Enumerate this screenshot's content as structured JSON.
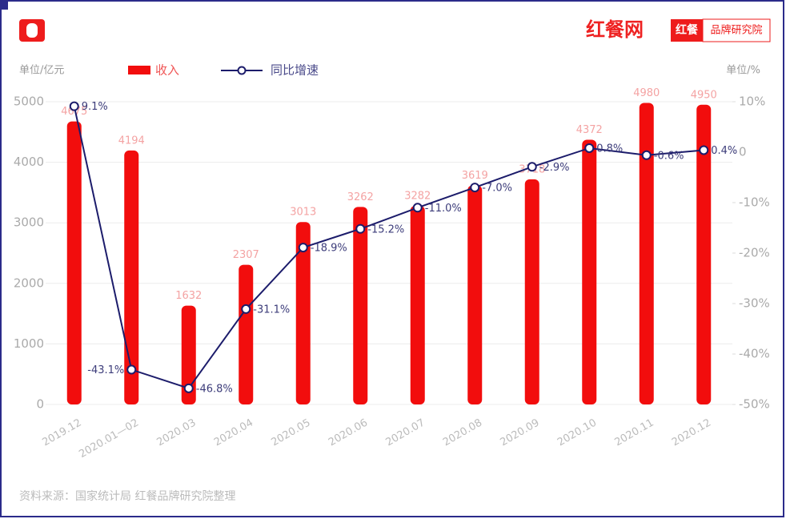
{
  "branding": {
    "logo": "红餐网",
    "badge": "红餐",
    "badge_sub": "品牌研究院"
  },
  "chart_data": {
    "type": "bar",
    "ylabel": "单位/亿元",
    "y2label": "单位/%",
    "source": "资料来源：国家统计局 红餐品牌研究院整理",
    "categories": [
      "2019.12",
      "2020.01—02",
      "2020.03",
      "2020.04",
      "2020.05",
      "2020.06",
      "2020.07",
      "2020.08",
      "2020.09",
      "2020.10",
      "2020.11",
      "2020.12"
    ],
    "series": [
      {
        "name": "收入",
        "type": "bar",
        "color": "#f20d0d",
        "values": [
          4675,
          4194,
          1632,
          2307,
          3013,
          3262,
          3282,
          3619,
          3718,
          4372,
          4980,
          4950
        ]
      },
      {
        "name": "同比增速",
        "type": "line",
        "axis": "y2",
        "color": "#1c1c6b",
        "values": [
          9.1,
          -43.1,
          -46.8,
          -31.1,
          -18.9,
          -15.2,
          -11.0,
          -7.0,
          -2.9,
          0.8,
          -0.6,
          0.4
        ],
        "value_labels": [
          "9.1%",
          "-43.1%",
          "-46.8%",
          "-31.1%",
          "-18.9%",
          "-15.2%",
          "-11.0%",
          "-7.0%",
          "-2.9%",
          "0.8%",
          "-0.6%",
          "0.4%"
        ]
      }
    ],
    "ylim": [
      0,
      5000
    ],
    "yticks": [
      0,
      1000,
      2000,
      3000,
      4000,
      5000
    ],
    "y2lim": [
      -50,
      10
    ],
    "y2ticks": [
      {
        "value": -50,
        "label": "-50%"
      },
      {
        "value": -40,
        "label": "-40%"
      },
      {
        "value": -30,
        "label": "-30%"
      },
      {
        "value": -20,
        "label": "-20%"
      },
      {
        "value": -10,
        "label": "-10%"
      },
      0,
      {
        "value": 10,
        "label": "10%"
      }
    ],
    "grid": true,
    "legend": "top"
  }
}
